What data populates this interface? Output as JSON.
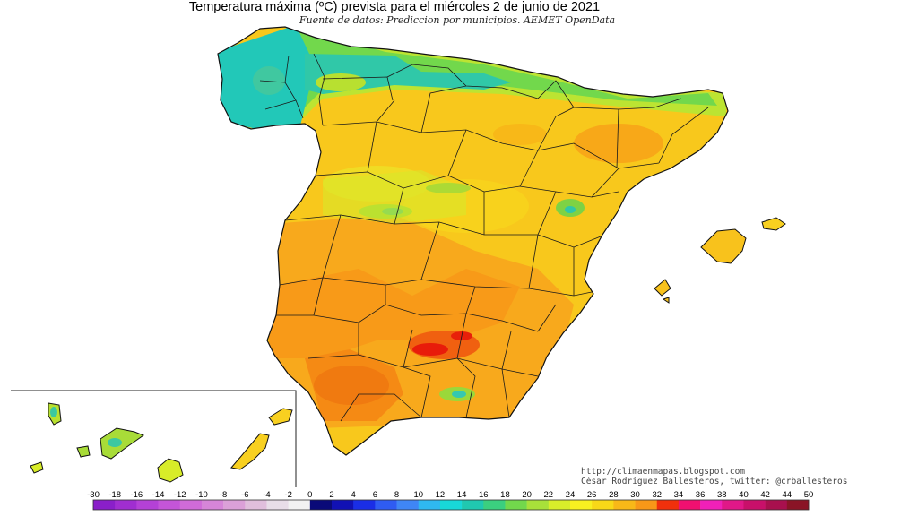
{
  "title": "Temperatura máxima (ºC) prevista para el miércoles 2 de junio de 2021",
  "subtitle": "Fuente de datos: Prediccion por municipios. AEMET OpenData",
  "credits": {
    "url": "http://climaenmapas.blogspot.com",
    "author": "César Rodríguez Ballesteros, twitter: @crballesteros"
  },
  "legend": {
    "tick_labels": [
      "-30",
      "-18",
      "-16",
      "-14",
      "-12",
      "-10",
      "-8",
      "-6",
      "-4",
      "-2",
      "0",
      "2",
      "4",
      "6",
      "8",
      "10",
      "12",
      "14",
      "16",
      "18",
      "20",
      "22",
      "24",
      "26",
      "28",
      "30",
      "32",
      "34",
      "36",
      "38",
      "40",
      "42",
      "44",
      "50"
    ],
    "colors": [
      "#8a1fc9",
      "#a02ed0",
      "#b441d6",
      "#c455d8",
      "#d06bd8",
      "#d685d8",
      "#dba0d8",
      "#e0bedc",
      "#e8dde8",
      "#f2f2f2",
      "#0a0a78",
      "#1111b4",
      "#1a2ee6",
      "#2f5cf2",
      "#3f86f5",
      "#2fb8f0",
      "#18d8d8",
      "#20c8b0",
      "#3bcf7f",
      "#72d84c",
      "#a8e03a",
      "#d8ee2a",
      "#f8f020",
      "#f8d818",
      "#f8b818",
      "#f89818",
      "#f0300c",
      "#f01070",
      "#f020b8",
      "#e01888",
      "#c8106a",
      "#a8104e",
      "#8a1426"
    ]
  }
}
